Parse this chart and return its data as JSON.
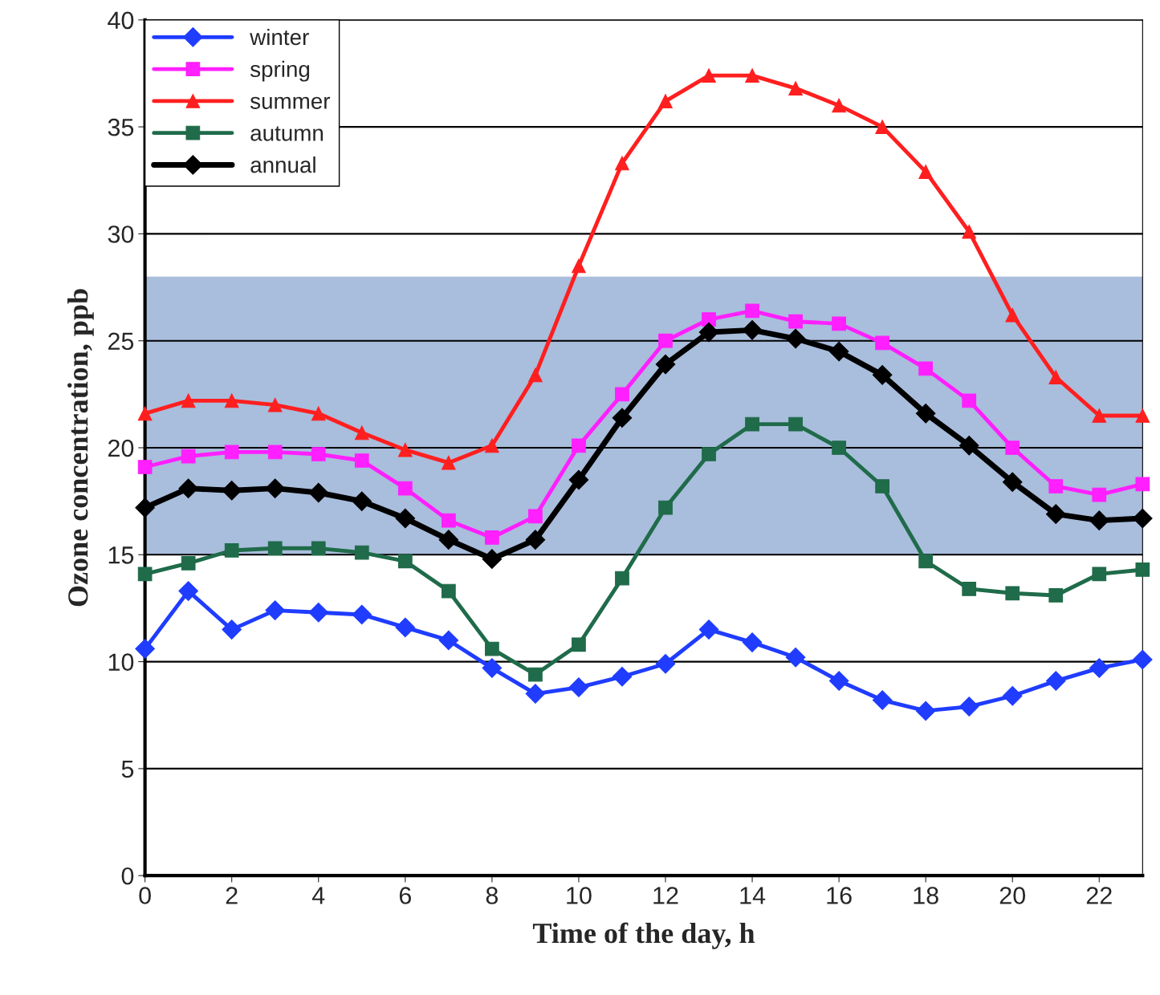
{
  "chart_data": {
    "type": "line",
    "xlabel": "Time of the day, h",
    "ylabel": "Ozone concentration, ppb",
    "x": [
      0,
      1,
      2,
      3,
      4,
      5,
      6,
      7,
      8,
      9,
      10,
      11,
      12,
      13,
      14,
      15,
      16,
      17,
      18,
      19,
      20,
      21,
      22,
      23
    ],
    "xlim": [
      0,
      23
    ],
    "xticks": [
      0,
      2,
      4,
      6,
      8,
      10,
      12,
      14,
      16,
      18,
      20,
      22
    ],
    "ylim": [
      0,
      40
    ],
    "yticks": [
      0,
      5,
      10,
      15,
      20,
      25,
      30,
      35,
      40
    ],
    "grid": "y",
    "legend": "top left",
    "bands": [
      {
        "axis": "y",
        "from": 15,
        "to": 28,
        "color": "#a9bddc"
      }
    ],
    "series": [
      {
        "name": "winter",
        "color": "#1f3cff",
        "marker": "diamond",
        "values": [
          10.6,
          13.3,
          11.5,
          12.4,
          12.3,
          12.2,
          11.6,
          11.0,
          9.7,
          8.5,
          8.8,
          9.3,
          9.9,
          11.5,
          10.9,
          10.2,
          9.1,
          8.2,
          7.7,
          7.9,
          8.4,
          9.1,
          9.7,
          10.1
        ]
      },
      {
        "name": "spring",
        "color": "#ff1fff",
        "marker": "square",
        "values": [
          19.1,
          19.6,
          19.8,
          19.8,
          19.7,
          19.4,
          18.1,
          16.6,
          15.8,
          16.8,
          20.1,
          22.5,
          25.0,
          26.0,
          26.4,
          25.9,
          25.8,
          24.9,
          23.7,
          22.2,
          20.0,
          18.2,
          17.8,
          18.3
        ]
      },
      {
        "name": "summer",
        "color": "#ff1f1f",
        "marker": "triangle",
        "values": [
          21.6,
          22.2,
          22.2,
          22.0,
          21.6,
          20.7,
          19.9,
          19.3,
          20.1,
          23.4,
          28.5,
          33.3,
          36.2,
          37.4,
          37.4,
          36.8,
          36.0,
          35.0,
          32.9,
          30.1,
          26.2,
          23.3,
          21.5,
          21.5
        ]
      },
      {
        "name": "autumn",
        "color": "#1f6b4a",
        "marker": "square",
        "values": [
          14.1,
          14.6,
          15.2,
          15.3,
          15.3,
          15.1,
          14.7,
          13.3,
          10.6,
          9.4,
          10.8,
          13.9,
          17.2,
          19.7,
          21.1,
          21.1,
          20.0,
          18.2,
          14.7,
          13.4,
          13.2,
          13.1,
          14.1,
          14.3
        ]
      },
      {
        "name": "annual",
        "color": "#000000",
        "marker": "diamond",
        "values": [
          17.2,
          18.1,
          18.0,
          18.1,
          17.9,
          17.5,
          16.7,
          15.7,
          14.8,
          15.7,
          18.5,
          21.4,
          23.9,
          25.4,
          25.5,
          25.1,
          24.5,
          23.4,
          21.6,
          20.1,
          18.4,
          16.9,
          16.6,
          16.7
        ]
      }
    ]
  }
}
